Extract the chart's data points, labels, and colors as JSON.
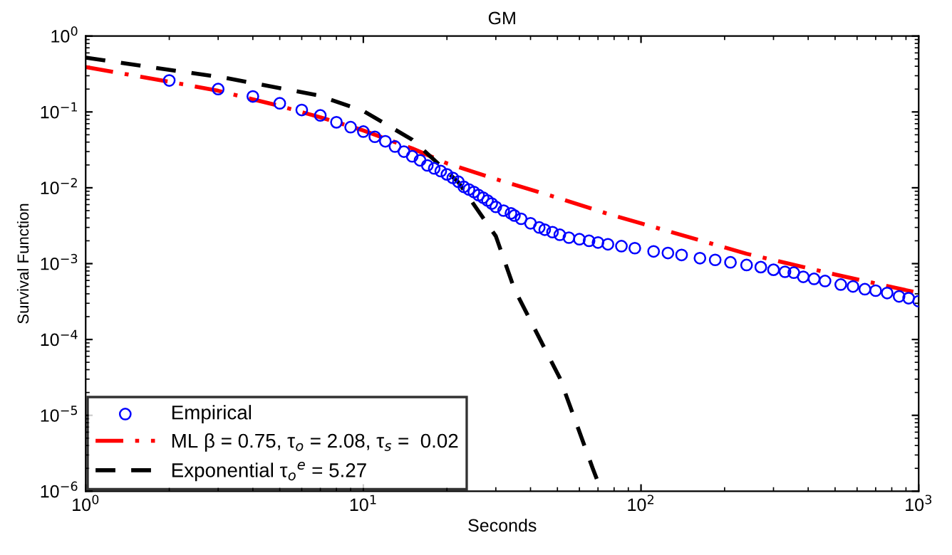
{
  "chart_data": {
    "type": "line",
    "title": "GM",
    "xlabel": "Seconds",
    "ylabel": "Survival Function",
    "log": "xy",
    "xlim": [
      1,
      1000
    ],
    "ylim": [
      1e-06,
      1
    ],
    "xticks": [
      {
        "value": 1,
        "label": "10$^{0}$"
      },
      {
        "value": 10,
        "label": "10$^{1}$"
      },
      {
        "value": 100,
        "label": "10$^{2}$"
      },
      {
        "value": 1000,
        "label": "10$^{3}$"
      }
    ],
    "yticks": [
      {
        "value": 1e-06,
        "label": "10$^{−6}$"
      },
      {
        "value": 1e-05,
        "label": "10$^{−5}$"
      },
      {
        "value": 0.0001,
        "label": "10$^{−4}$"
      },
      {
        "value": 0.001,
        "label": "10$^{−3}$"
      },
      {
        "value": 0.01,
        "label": "10$^{−2}$"
      },
      {
        "value": 0.1,
        "label": "10$^{−1}$"
      },
      {
        "value": 1,
        "label": "10$^{0}$"
      }
    ],
    "grid": false,
    "legend": "bottom left",
    "series": [
      {
        "name": "Empirical",
        "type": "scatter",
        "marker": "circle",
        "color": "#0000ff",
        "x": [
          2,
          3,
          4,
          5,
          6,
          7,
          8,
          9,
          10,
          11,
          12,
          13,
          14,
          15,
          16,
          17,
          18,
          19,
          20,
          21,
          22,
          23,
          24,
          25,
          26,
          27,
          28,
          29,
          30,
          32,
          34,
          35,
          37,
          40,
          43,
          45,
          48,
          51,
          55,
          60,
          65,
          70,
          76,
          85,
          95,
          111,
          125,
          140,
          163,
          185,
          210,
          240,
          270,
          300,
          330,
          355,
          384,
          420,
          460,
          524,
          580,
          640,
          700,
          770,
          850,
          920,
          1000
        ],
        "values": [
          0.26,
          0.2,
          0.16,
          0.13,
          0.106,
          0.09,
          0.073,
          0.063,
          0.055,
          0.047,
          0.041,
          0.035,
          0.03,
          0.026,
          0.023,
          0.0197,
          0.018,
          0.0166,
          0.015,
          0.0135,
          0.012,
          0.0103,
          0.0095,
          0.0088,
          0.008,
          0.0074,
          0.0068,
          0.0062,
          0.0056,
          0.005,
          0.0046,
          0.0043,
          0.0039,
          0.0034,
          0.003,
          0.0028,
          0.0026,
          0.0024,
          0.0022,
          0.0021,
          0.002,
          0.0019,
          0.0018,
          0.0017,
          0.0016,
          0.00145,
          0.00138,
          0.0013,
          0.00118,
          0.00112,
          0.00104,
          0.00096,
          0.0009,
          0.00083,
          0.00078,
          0.00076,
          0.00067,
          0.00063,
          0.00059,
          0.00053,
          0.0005,
          0.00046,
          0.00044,
          0.00041,
          0.00037,
          0.00035,
          0.00032
        ]
      },
      {
        "name": "ML β = 0.75, τ$_{o}$ = 2.08, τ$_{s}$ =  0.02",
        "line_style": "dashdot",
        "color": "#ff0000",
        "x": [
          1,
          2,
          3,
          5,
          7,
          10,
          15,
          20,
          30,
          50,
          75,
          100,
          240,
          500,
          1000
        ],
        "values": [
          0.39,
          0.25,
          0.19,
          0.12,
          0.085,
          0.057,
          0.033,
          0.021,
          0.013,
          0.0074,
          0.0046,
          0.0034,
          0.00135,
          0.00072,
          0.00041
        ]
      },
      {
        "name": "Exponential τ$_{o}$$^{e}$ = 5.27",
        "line_style": "dashed",
        "color": "#000000",
        "x": [
          1,
          3.2,
          6.9,
          10,
          15,
          22,
          30,
          35,
          51,
          67,
          72
        ],
        "values": [
          0.52,
          0.28,
          0.165,
          0.103,
          0.043,
          0.0118,
          0.0023,
          0.00046,
          3.1e-05,
          2e-06,
          1e-06
        ]
      }
    ]
  }
}
